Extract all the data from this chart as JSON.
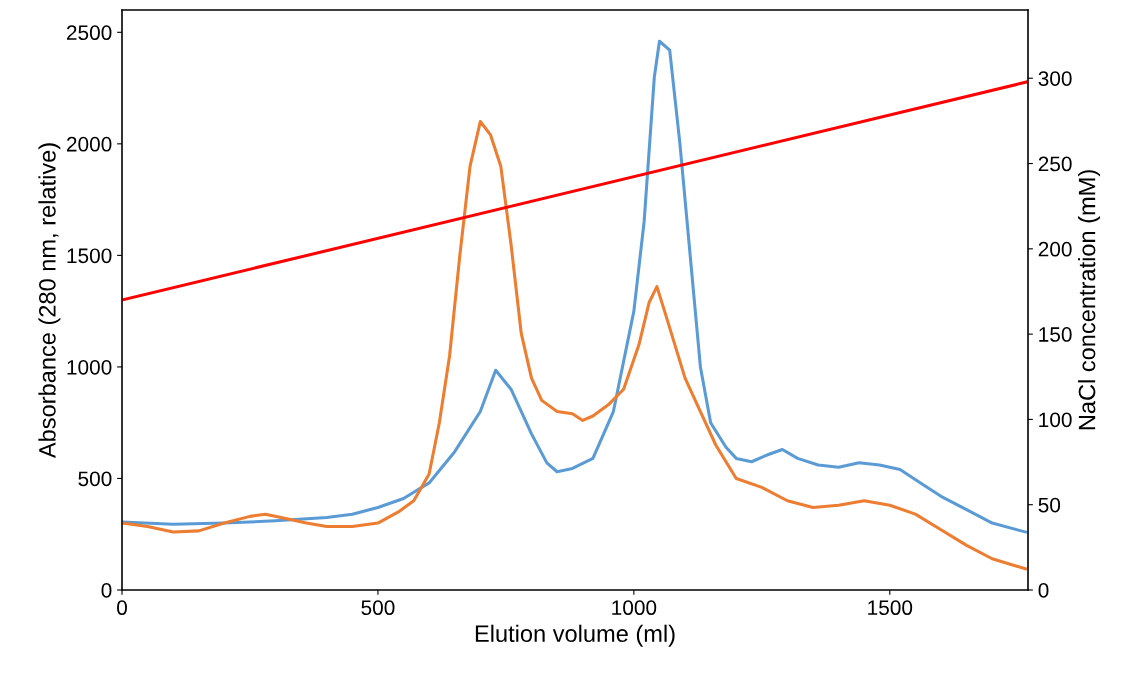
{
  "chart_data": {
    "type": "line",
    "xlabel": "Elution volume (ml)",
    "ylabel": "Absorbance (280 nm, relative)",
    "y2label": "NaCl concentration (mM)",
    "xlim": [
      0,
      1770
    ],
    "xticks": [
      0,
      500,
      1000,
      1500
    ],
    "ylim": [
      0,
      2600
    ],
    "yticks": [
      0,
      500,
      1000,
      1500,
      2000,
      2500
    ],
    "y2lim": [
      0,
      340
    ],
    "y2ticks": [
      0,
      50,
      100,
      150,
      200,
      250,
      300
    ],
    "grid": false,
    "legend": false,
    "marker": "none",
    "line_style": "solid",
    "series": [
      {
        "color": "#5b9bd5",
        "x": [
          0,
          100,
          200,
          300,
          400,
          450,
          500,
          550,
          600,
          650,
          700,
          730,
          760,
          800,
          830,
          850,
          880,
          920,
          960,
          1000,
          1020,
          1040,
          1050,
          1070,
          1090,
          1110,
          1130,
          1150,
          1180,
          1200,
          1230,
          1260,
          1290,
          1320,
          1360,
          1400,
          1440,
          1480,
          1520,
          1560,
          1600,
          1650,
          1700,
          1765
        ],
        "values": [
          305,
          295,
          300,
          310,
          325,
          340,
          370,
          410,
          480,
          620,
          800,
          985,
          900,
          700,
          570,
          530,
          545,
          590,
          800,
          1250,
          1650,
          2300,
          2460,
          2420,
          2000,
          1500,
          1000,
          750,
          640,
          590,
          575,
          605,
          630,
          590,
          560,
          550,
          570,
          560,
          540,
          480,
          420,
          360,
          300,
          260
        ]
      },
      {
        "color": "#ed7d31",
        "x": [
          0,
          50,
          100,
          150,
          200,
          250,
          280,
          320,
          360,
          400,
          450,
          500,
          540,
          570,
          600,
          620,
          640,
          660,
          680,
          700,
          720,
          740,
          760,
          780,
          800,
          820,
          850,
          880,
          900,
          920,
          950,
          980,
          1010,
          1030,
          1045,
          1060,
          1080,
          1100,
          1130,
          1160,
          1200,
          1250,
          1300,
          1350,
          1400,
          1450,
          1500,
          1550,
          1600,
          1650,
          1700,
          1765
        ],
        "values": [
          300,
          285,
          260,
          265,
          300,
          330,
          340,
          320,
          300,
          285,
          285,
          300,
          350,
          400,
          520,
          750,
          1050,
          1500,
          1900,
          2100,
          2040,
          1900,
          1550,
          1150,
          950,
          850,
          800,
          790,
          760,
          780,
          830,
          900,
          1100,
          1290,
          1360,
          1250,
          1100,
          950,
          800,
          650,
          500,
          460,
          400,
          370,
          380,
          400,
          380,
          340,
          270,
          200,
          140,
          95
        ]
      },
      {
        "color": "#ff0000",
        "axis": "y2",
        "x": [
          0,
          1770
        ],
        "values": [
          170,
          298
        ]
      }
    ]
  }
}
